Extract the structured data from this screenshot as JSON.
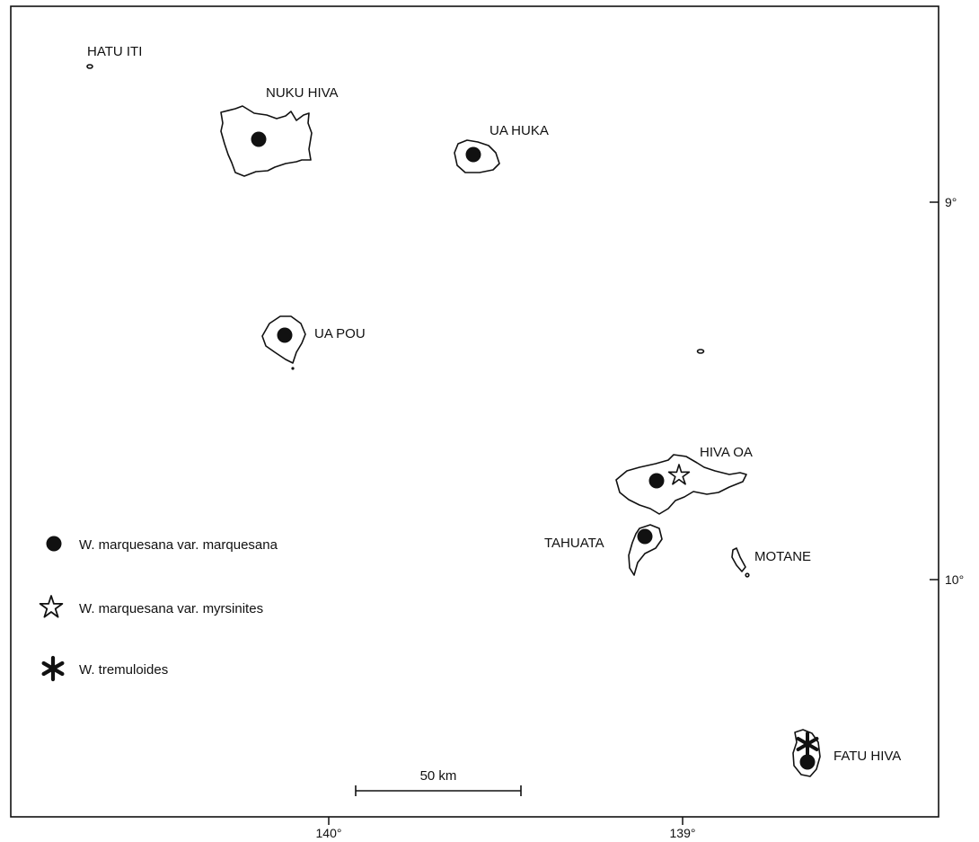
{
  "map": {
    "islands": {
      "hatu_iti": "HATU ITI",
      "nuku_hiva": "NUKU HIVA",
      "ua_huka": "UA HUKA",
      "ua_pou": "UA POU",
      "hiva_oa": "HIVA OA",
      "tahuata": "TAHUATA",
      "motane": "MOTANE",
      "fatu_hiva": "FATU HIVA"
    },
    "longitude_ticks": [
      "140°",
      "139°"
    ],
    "latitude_ticks": [
      "9°",
      "10°"
    ],
    "scale_bar": "50 km"
  },
  "legend": {
    "items": [
      {
        "symbol": "filled-circle",
        "label": "W. marquesana var. marquesana"
      },
      {
        "symbol": "open-star",
        "label": "W. marquesana var. myrsinites"
      },
      {
        "symbol": "asterisk",
        "label": "W. tremuloides"
      }
    ]
  },
  "colors": {
    "ink": "#111111",
    "background": "#ffffff"
  }
}
